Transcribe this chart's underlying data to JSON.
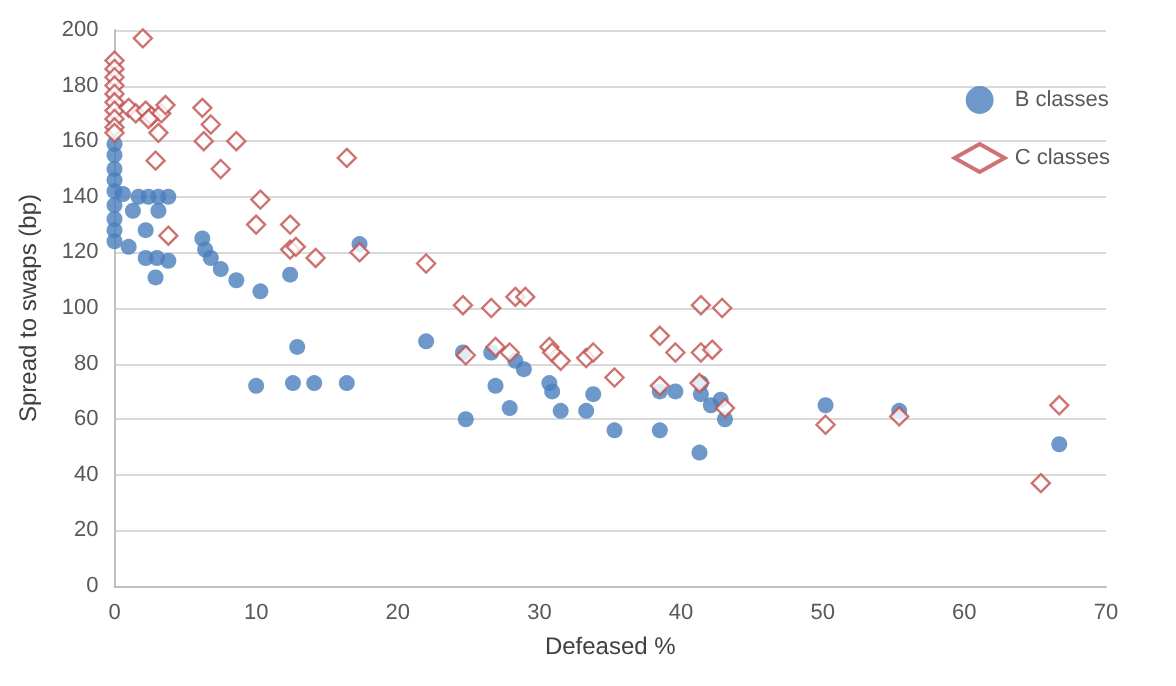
{
  "chart_data": {
    "type": "scatter",
    "xlabel": "Defeased %",
    "ylabel": "Spread to swaps (bp)",
    "xlim": [
      0,
      70
    ],
    "xticks": [
      0,
      10,
      20,
      30,
      40,
      50,
      60,
      70
    ],
    "ylim": [
      0,
      200
    ],
    "yticks": [
      0,
      20,
      40,
      60,
      80,
      100,
      120,
      140,
      160,
      180,
      200
    ],
    "grid": "y",
    "legend": "top right",
    "series": [
      {
        "name": "B classes",
        "color": "#4a7ebb",
        "marker": "circle",
        "x": [
          0,
          0,
          0,
          0,
          0,
          0,
          0,
          0,
          0,
          0.6,
          1.0,
          1.3,
          1.7,
          2.4,
          3.1,
          3.8,
          3.1,
          2.2,
          2.2,
          2.9,
          3.0,
          3.8,
          6.2,
          6.4,
          6.8,
          7.5,
          8.6,
          10.3,
          12.4,
          17.3,
          10.0,
          12.9,
          12.6,
          14.1,
          16.4,
          22.0,
          24.6,
          24.8,
          26.6,
          26.9,
          27.9,
          28.3,
          28.9,
          30.7,
          30.9,
          31.5,
          33.3,
          33.8,
          35.3,
          38.5,
          38.5,
          39.6,
          41.3,
          41.4,
          41.4,
          42.1,
          42.8,
          43.1,
          50.2,
          55.4,
          66.7
        ],
        "values": [
          159,
          155,
          150,
          146,
          142,
          137,
          132,
          128,
          124,
          141,
          122,
          135,
          140,
          140,
          140,
          140,
          135,
          128,
          118,
          111,
          118,
          117,
          125,
          121,
          118,
          114,
          110,
          106,
          112,
          123,
          72,
          86,
          73,
          73,
          73,
          88,
          84,
          60,
          84,
          72,
          64,
          81,
          78,
          73,
          70,
          63,
          63,
          69,
          56,
          70,
          56,
          70,
          48,
          73,
          69,
          65,
          67,
          60,
          65,
          63,
          51
        ]
      },
      {
        "name": "C classes",
        "color": "#c0504d",
        "marker": "diamond",
        "x": [
          0,
          0,
          0,
          0,
          0,
          0,
          0,
          0,
          0,
          0,
          1.0,
          1.5,
          2.2,
          2.6,
          3.3,
          2.0,
          3.6,
          2.4,
          3.1,
          2.9,
          3.8,
          6.2,
          6.8,
          6.3,
          8.6,
          7.5,
          10.3,
          10.0,
          12.4,
          12.4,
          12.8,
          14.2,
          16.4,
          17.3,
          22.0,
          24.6,
          24.8,
          26.6,
          26.9,
          28.3,
          29.0,
          27.9,
          30.7,
          30.9,
          31.5,
          33.3,
          33.8,
          35.3,
          38.5,
          39.6,
          41.4,
          42.9,
          41.4,
          42.2,
          38.5,
          41.3,
          43.1,
          50.2,
          55.4,
          66.7,
          65.4
        ],
        "values": [
          189,
          186,
          183,
          180,
          177,
          174,
          171,
          168,
          165,
          163,
          172,
          170,
          171,
          169,
          170,
          197,
          173,
          168,
          163,
          153,
          126,
          172,
          166,
          160,
          160,
          150,
          139,
          130,
          130,
          121,
          122,
          118,
          154,
          120,
          116,
          101,
          83,
          100,
          86,
          104,
          104,
          84,
          86,
          84,
          81,
          82,
          84,
          75,
          90,
          84,
          101,
          100,
          84,
          85,
          72,
          73,
          64,
          58,
          61,
          65,
          37
        ]
      }
    ]
  }
}
